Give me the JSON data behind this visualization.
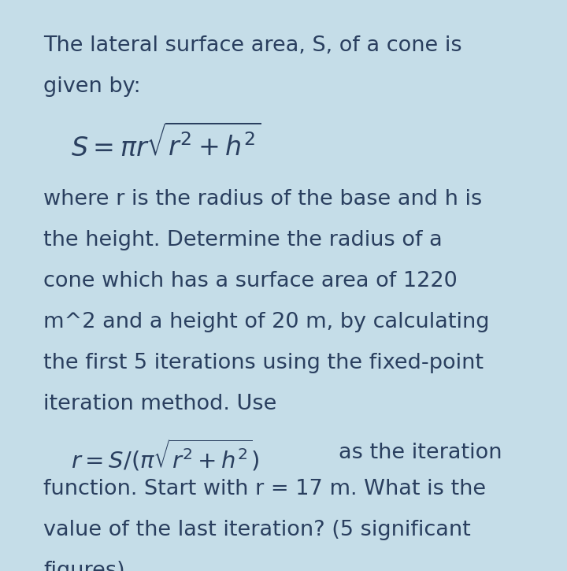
{
  "background_color": "#c5dde8",
  "text_color": "#2a3f5f",
  "fig_width": 7.2,
  "fig_height": 7.25,
  "dpi": 100,
  "main_text_fontsize": 19.5,
  "formula1_fontsize": 24,
  "formula2_fontsize": 21,
  "font_family": "DejaVu Sans",
  "line1": "The lateral surface area, S, of a cone is",
  "line2": "given by:",
  "paragraph1_line1": "where r is the radius of the base and h is",
  "paragraph1_line2": "the height. Determine the radius of a",
  "paragraph1_line3": "cone which has a surface area of 1220",
  "paragraph1_line4": "m^2 and a height of 20 m, by calculating",
  "paragraph1_line5": "the first 5 iterations using the fixed-point",
  "paragraph1_line6": "iteration method. Use",
  "paragraph2_suffix": "as the iteration",
  "paragraph2_line2": "function. Start with r = 17 m. What is the",
  "paragraph2_line3": "value of the last iteration? (5 significant",
  "paragraph2_line4": "figures)"
}
